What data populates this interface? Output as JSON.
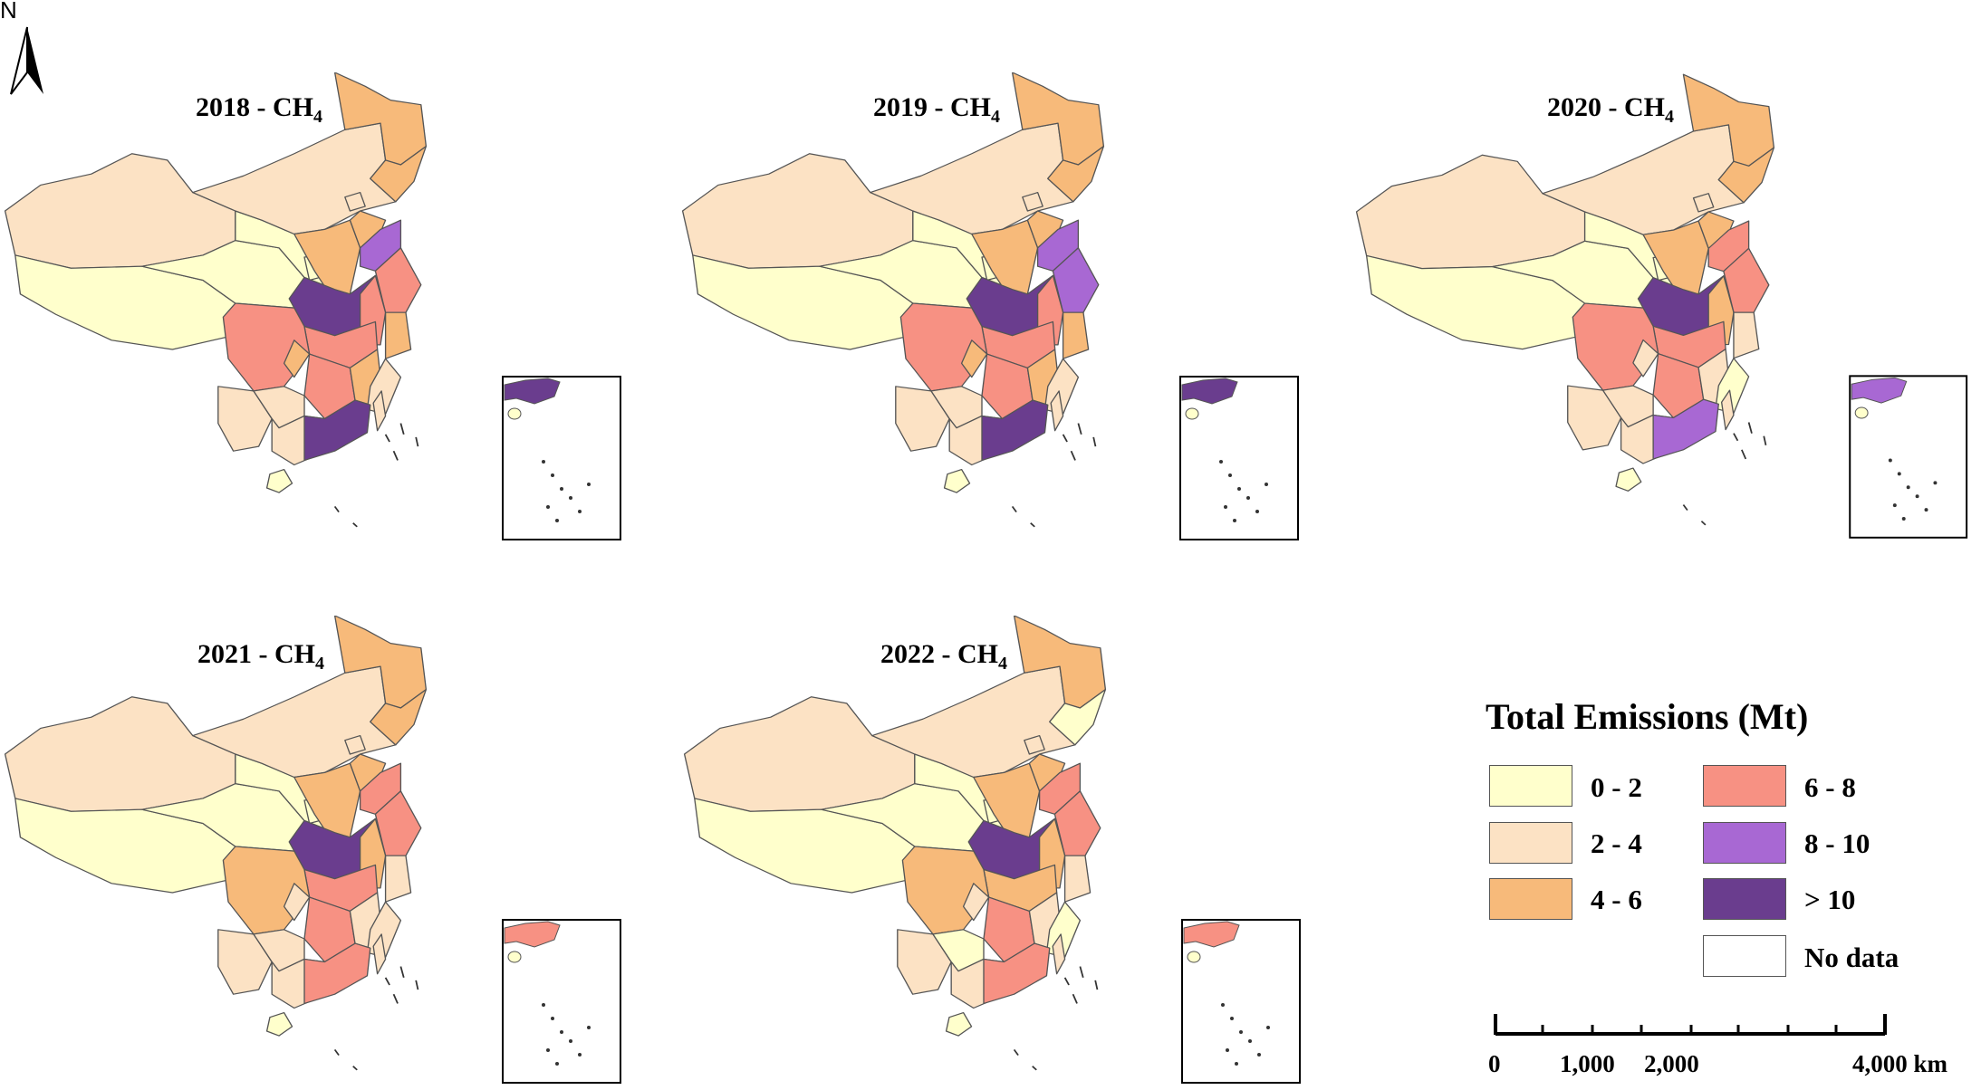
{
  "north_arrow": {
    "label": "N",
    "icon": "north-arrow-icon"
  },
  "classes": [
    {
      "range": "0 - 2",
      "color": "#FFFFCC"
    },
    {
      "range": "2 - 4",
      "color": "#FCE2C4"
    },
    {
      "range": "4 - 6",
      "color": "#F7BA7A"
    },
    {
      "range": "6 - 8",
      "color": "#F79183"
    },
    {
      "range": "8 - 10",
      "color": "#A868D3"
    },
    {
      "range": "> 10",
      "color": "#6A3D8E"
    }
  ],
  "no_data": {
    "label": "No data",
    "color": "#FFFFFF"
  },
  "legend": {
    "title": "Total  Emissions (Mt)"
  },
  "scale_bar": {
    "ticks": [
      "0",
      "1,000",
      "2,000",
      "4,000 km"
    ]
  },
  "maps": [
    {
      "year": "2018",
      "title_prefix": "2018 - CH",
      "subscript": "4",
      "classes": {
        "NE": 2,
        "HLJ": 2,
        "NMG": 1,
        "XJ": 1,
        "XZ": 0,
        "QH": 0,
        "GS": 0,
        "NX": 0,
        "SX": 2,
        "HEB": 2,
        "BJ": 1,
        "SD": 4,
        "HEN": 5,
        "JS": 3,
        "AH": 3,
        "HUB": 3,
        "HUN": 3,
        "SC": 3,
        "CQ": 2,
        "GZ": 1,
        "YN": 1,
        "GX": 1,
        "GD": 5,
        "FJ": 1,
        "ZJ": 2,
        "JX": 2,
        "HN": 0,
        "TW": 1,
        "INSET": 5
      }
    },
    {
      "year": "2019",
      "title_prefix": "2019 - CH",
      "subscript": "4",
      "classes": {
        "NE": 2,
        "HLJ": 2,
        "NMG": 1,
        "XJ": 1,
        "XZ": 0,
        "QH": 0,
        "GS": 0,
        "NX": 0,
        "SX": 2,
        "HEB": 2,
        "BJ": 1,
        "SD": 4,
        "HEN": 5,
        "JS": 4,
        "AH": 3,
        "HUB": 3,
        "HUN": 3,
        "SC": 3,
        "CQ": 2,
        "GZ": 1,
        "YN": 1,
        "GX": 1,
        "GD": 5,
        "FJ": 1,
        "ZJ": 2,
        "JX": 2,
        "HN": 0,
        "TW": 1,
        "INSET": 5
      }
    },
    {
      "year": "2020",
      "title_prefix": "2020 - CH",
      "subscript": "4",
      "classes": {
        "NE": 2,
        "HLJ": 2,
        "NMG": 1,
        "XJ": 1,
        "XZ": 0,
        "QH": 0,
        "GS": 0,
        "NX": 0,
        "SX": 2,
        "HEB": 2,
        "BJ": 1,
        "SD": 3,
        "HEN": 5,
        "JS": 3,
        "AH": 2,
        "HUB": 3,
        "HUN": 3,
        "SC": 3,
        "CQ": 1,
        "GZ": 1,
        "YN": 1,
        "GX": 1,
        "GD": 4,
        "FJ": 0,
        "ZJ": 1,
        "JX": 1,
        "HN": 0,
        "TW": 1,
        "INSET": 4
      }
    },
    {
      "year": "2021",
      "title_prefix": "2021 - CH",
      "subscript": "4",
      "classes": {
        "NE": 2,
        "HLJ": 2,
        "NMG": 1,
        "XJ": 1,
        "XZ": 0,
        "QH": 0,
        "GS": 0,
        "NX": 0,
        "SX": 2,
        "HEB": 2,
        "BJ": 1,
        "SD": 3,
        "HEN": 5,
        "JS": 3,
        "AH": 2,
        "HUB": 3,
        "HUN": 3,
        "SC": 2,
        "CQ": 1,
        "GZ": 1,
        "YN": 1,
        "GX": 1,
        "GD": 3,
        "FJ": 1,
        "ZJ": 1,
        "JX": 1,
        "HN": 0,
        "TW": 1,
        "INSET": 3
      }
    },
    {
      "year": "2022",
      "title_prefix": "2022 - CH",
      "subscript": "4",
      "classes": {
        "NE": 0,
        "HLJ": 2,
        "NMG": 1,
        "XJ": 1,
        "XZ": 0,
        "QH": 0,
        "GS": 0,
        "NX": 0,
        "SX": 2,
        "HEB": 2,
        "BJ": 1,
        "SD": 3,
        "HEN": 5,
        "JS": 3,
        "AH": 2,
        "HUB": 2,
        "HUN": 3,
        "SC": 2,
        "CQ": 1,
        "GZ": 0,
        "YN": 1,
        "GX": 1,
        "GD": 3,
        "FJ": 0,
        "ZJ": 1,
        "JX": 1,
        "HN": 0,
        "TW": 1,
        "INSET": 3
      }
    }
  ]
}
